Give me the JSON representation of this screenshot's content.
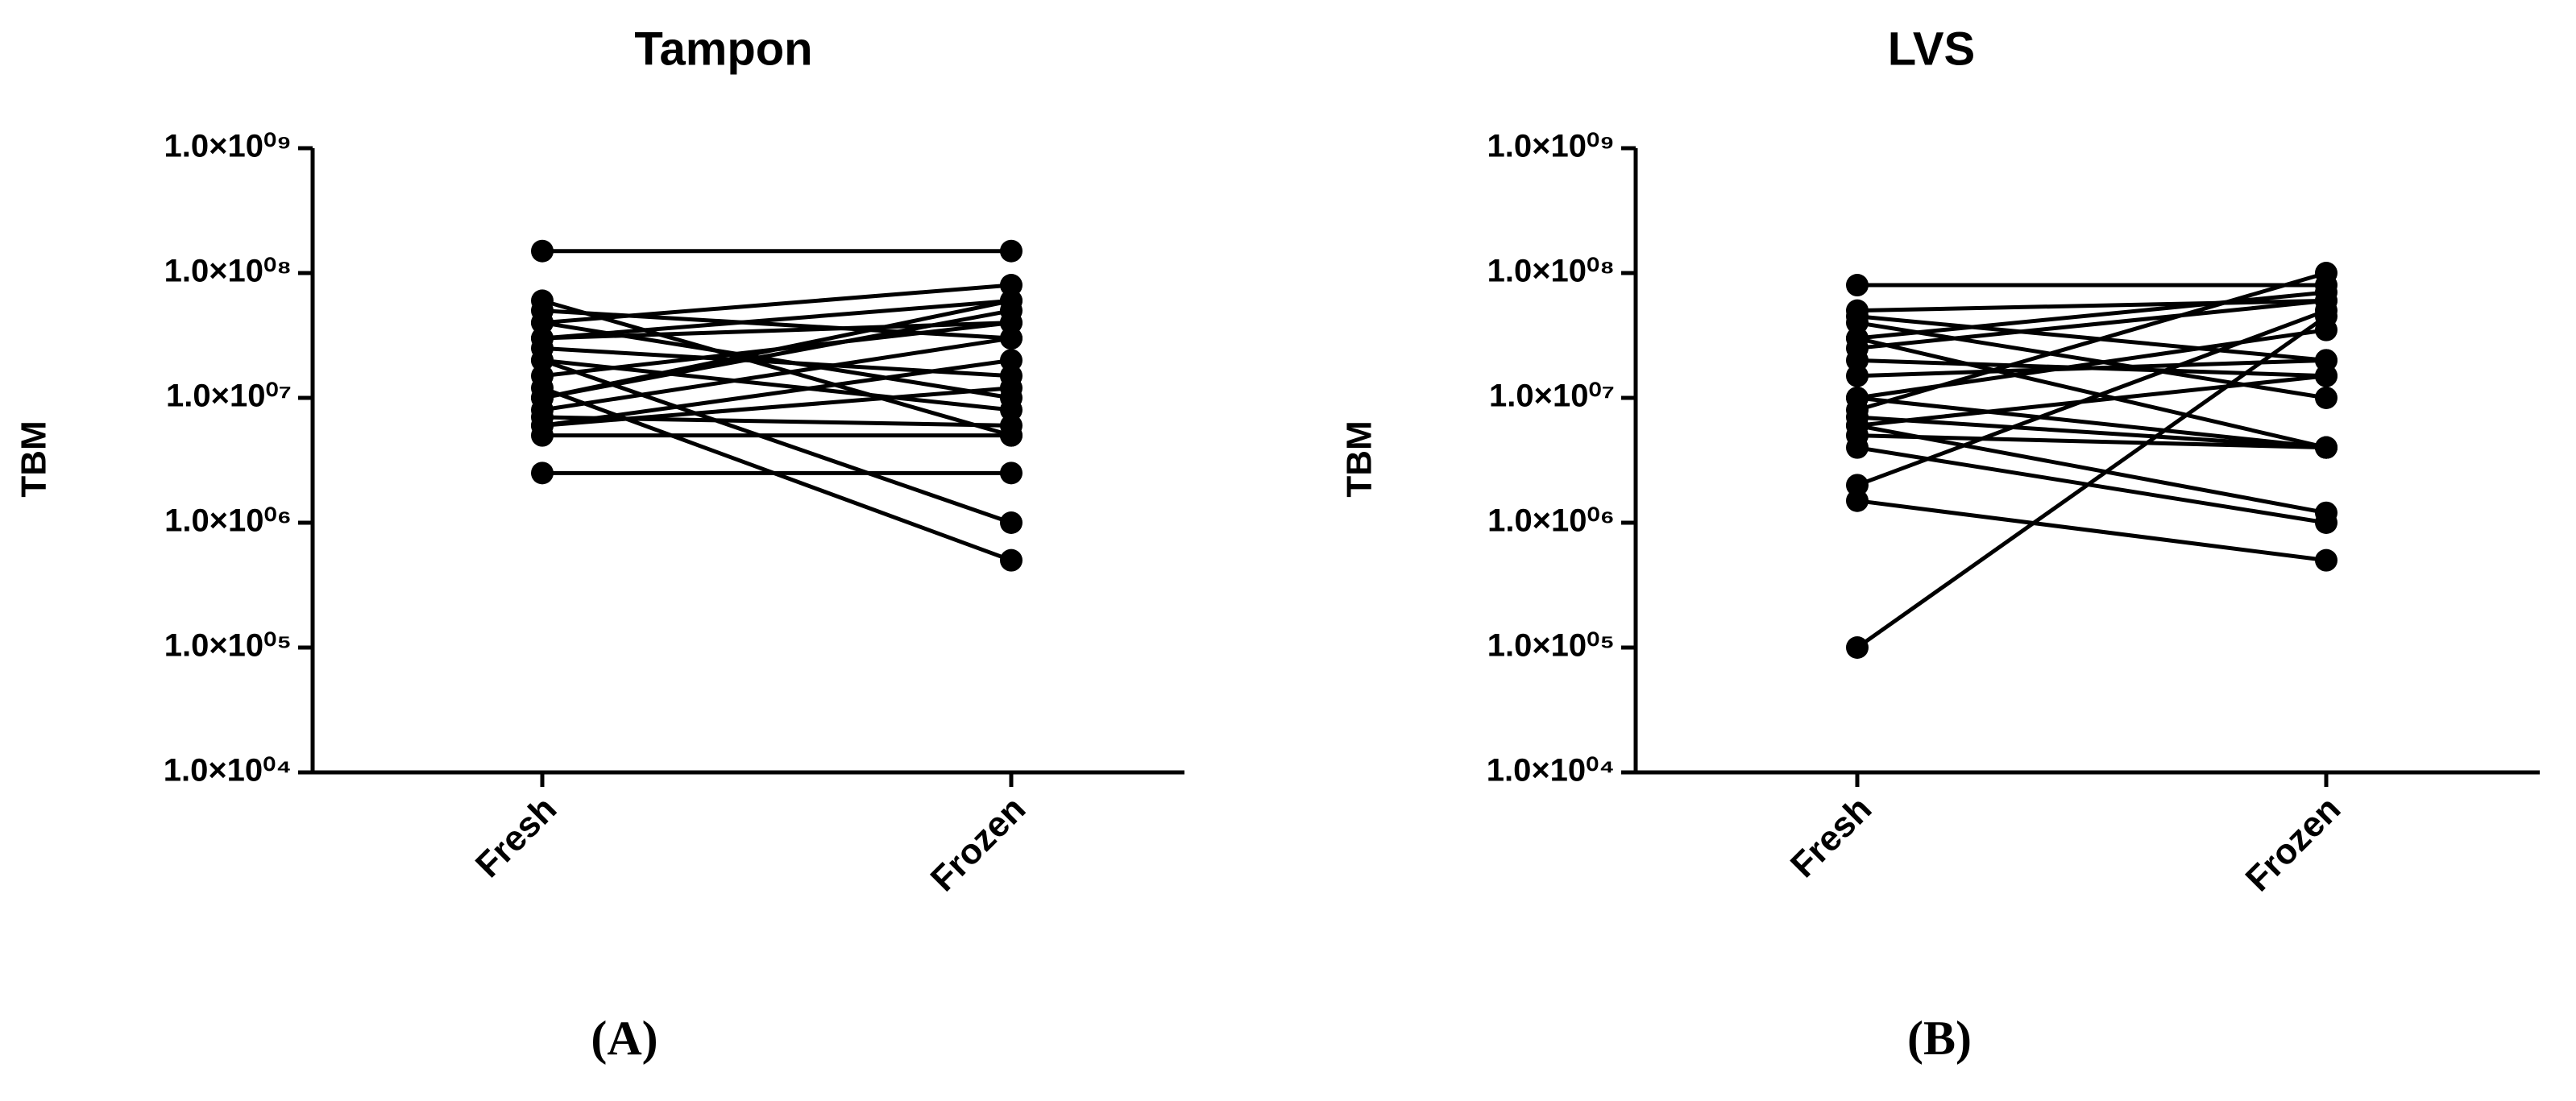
{
  "chart_data": [
    {
      "type": "line",
      "title": "Tampon",
      "ylabel": "TBM",
      "panel_label": "(A)",
      "categories": [
        "Fresh",
        "Frozen"
      ],
      "color": "#000000",
      "log_scale": true,
      "ylim": [
        10000,
        1000000000
      ],
      "yticks": [
        {
          "value": 10000,
          "label": "1.0×10⁰⁴"
        },
        {
          "value": 100000,
          "label": "1.0×10⁰⁵"
        },
        {
          "value": 1000000,
          "label": "1.0×10⁰⁶"
        },
        {
          "value": 10000000,
          "label": "1.0×10⁰⁷"
        },
        {
          "value": 100000000,
          "label": "1.0×10⁰⁸"
        },
        {
          "value": 1000000000,
          "label": "1.0×10⁰⁹"
        }
      ],
      "series": [
        {
          "values": [
            150000000,
            150000000
          ]
        },
        {
          "values": [
            2500000,
            2500000
          ]
        },
        {
          "values": [
            60000000,
            5000000
          ]
        },
        {
          "values": [
            50000000,
            30000000
          ]
        },
        {
          "values": [
            40000000,
            80000000
          ]
        },
        {
          "values": [
            30000000,
            60000000
          ]
        },
        {
          "values": [
            25000000,
            15000000
          ]
        },
        {
          "values": [
            20000000,
            1000000
          ]
        },
        {
          "values": [
            15000000,
            40000000
          ]
        },
        {
          "values": [
            12000000,
            500000
          ]
        },
        {
          "values": [
            10000000,
            50000000
          ]
        },
        {
          "values": [
            8000000,
            30000000
          ]
        },
        {
          "values": [
            7000000,
            6000000
          ]
        },
        {
          "values": [
            6000000,
            20000000
          ]
        },
        {
          "values": [
            5000000,
            5000000
          ]
        },
        {
          "values": [
            40000000,
            10000000
          ]
        },
        {
          "values": [
            20000000,
            8000000
          ]
        },
        {
          "values": [
            30000000,
            40000000
          ]
        },
        {
          "values": [
            10000000,
            60000000
          ]
        },
        {
          "values": [
            6000000,
            12000000
          ]
        }
      ]
    },
    {
      "type": "line",
      "title": "LVS",
      "ylabel": "TBM",
      "panel_label": "(B)",
      "categories": [
        "Fresh",
        "Frozen"
      ],
      "color": "#000000",
      "log_scale": true,
      "ylim": [
        10000,
        1000000000
      ],
      "yticks": [
        {
          "value": 10000,
          "label": "1.0×10⁰⁴"
        },
        {
          "value": 100000,
          "label": "1.0×10⁰⁵"
        },
        {
          "value": 1000000,
          "label": "1.0×10⁰⁶"
        },
        {
          "value": 10000000,
          "label": "1.0×10⁰⁷"
        },
        {
          "value": 100000000,
          "label": "1.0×10⁰⁸"
        },
        {
          "value": 1000000000,
          "label": "1.0×10⁰⁹"
        }
      ],
      "series": [
        {
          "values": [
            80000000,
            80000000
          ]
        },
        {
          "values": [
            100000,
            45000000
          ]
        },
        {
          "values": [
            1500000,
            500000
          ]
        },
        {
          "values": [
            2000000,
            50000000
          ]
        },
        {
          "values": [
            4000000,
            1000000
          ]
        },
        {
          "values": [
            5000000,
            4000000
          ]
        },
        {
          "values": [
            6000000,
            1200000
          ]
        },
        {
          "values": [
            7000000,
            4000000
          ]
        },
        {
          "values": [
            8000000,
            100000000
          ]
        },
        {
          "values": [
            10000000,
            4000000
          ]
        },
        {
          "values": [
            15000000,
            20000000
          ]
        },
        {
          "values": [
            20000000,
            15000000
          ]
        },
        {
          "values": [
            25000000,
            60000000
          ]
        },
        {
          "values": [
            30000000,
            4000000
          ]
        },
        {
          "values": [
            40000000,
            10000000
          ]
        },
        {
          "values": [
            50000000,
            60000000
          ]
        },
        {
          "values": [
            45000000,
            20000000
          ]
        },
        {
          "values": [
            10000000,
            35000000
          ]
        },
        {
          "values": [
            6000000,
            15000000
          ]
        },
        {
          "values": [
            30000000,
            70000000
          ]
        }
      ]
    }
  ]
}
